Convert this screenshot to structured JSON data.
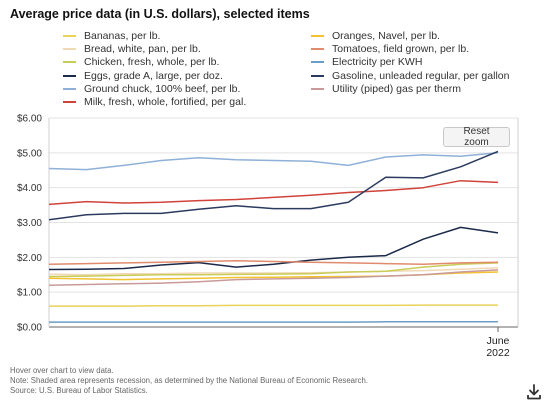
{
  "title": "Average price data (in U.S. dollars), selected items",
  "reset_button": "Reset zoom",
  "notes": [
    "Hover over chart to view data.",
    "Note: Shaded area represents recession, as determined by the National Bureau of Economic Research.",
    "Source: U.S. Bureau of Labor Statistics."
  ],
  "download_icon": "download-icon",
  "chart_data": {
    "type": "line",
    "x_tick_labels": [
      "June",
      "2022"
    ],
    "ylim": [
      0,
      6
    ],
    "yticks": [
      "$0.00",
      "$1.00",
      "$2.00",
      "$3.00",
      "$4.00",
      "$5.00",
      "$6.00"
    ],
    "grid": true,
    "legend_placement": "top",
    "series": [
      {
        "name": "Bananas, per lb.",
        "color": "#e8d25a",
        "values": [
          0.6,
          0.6,
          0.6,
          0.61,
          0.61,
          0.62,
          0.62,
          0.62,
          0.62,
          0.62,
          0.63,
          0.63,
          0.63
        ]
      },
      {
        "name": "Bread, white, pan, per lb.",
        "color": "#f0d9b5",
        "values": [
          1.52,
          1.5,
          1.53,
          1.53,
          1.55,
          1.55,
          1.55,
          1.56,
          1.58,
          1.6,
          1.62,
          1.66,
          1.7
        ]
      },
      {
        "name": "Chicken, fresh, whole, per lb.",
        "color": "#c9cd57",
        "values": [
          1.45,
          1.46,
          1.48,
          1.5,
          1.5,
          1.51,
          1.52,
          1.53,
          1.58,
          1.6,
          1.72,
          1.8,
          1.84
        ]
      },
      {
        "name": "Eggs, grade A, large, per doz.",
        "color": "#1c2a4a",
        "values": [
          1.65,
          1.66,
          1.68,
          1.78,
          1.85,
          1.72,
          1.8,
          1.92,
          2.0,
          2.05,
          2.52,
          2.86,
          2.7
        ]
      },
      {
        "name": "Ground chuck, 100% beef, per lb.",
        "color": "#8fb0d8",
        "values": [
          4.55,
          4.52,
          4.64,
          4.78,
          4.86,
          4.8,
          4.78,
          4.76,
          4.64,
          4.88,
          4.94,
          4.9,
          5.0
        ]
      },
      {
        "name": "Milk, fresh, whole, fortified, per gal.",
        "color": "#d0433b",
        "values": [
          3.52,
          3.6,
          3.56,
          3.58,
          3.63,
          3.66,
          3.72,
          3.78,
          3.86,
          3.92,
          4.0,
          4.2,
          4.15
        ]
      },
      {
        "name": "Oranges, Navel, per lb.",
        "color": "#f2c230",
        "values": [
          1.4,
          1.38,
          1.36,
          1.38,
          1.4,
          1.42,
          1.43,
          1.44,
          1.45,
          1.46,
          1.5,
          1.55,
          1.58
        ]
      },
      {
        "name": "Tomatoes, field grown, per lb.",
        "color": "#e08b6d",
        "values": [
          1.8,
          1.82,
          1.84,
          1.86,
          1.88,
          1.9,
          1.88,
          1.86,
          1.84,
          1.82,
          1.8,
          1.84,
          1.86
        ]
      },
      {
        "name": "Electricity per KWH",
        "color": "#6a9ec8",
        "values": [
          0.14,
          0.14,
          0.14,
          0.14,
          0.14,
          0.14,
          0.14,
          0.14,
          0.14,
          0.15,
          0.15,
          0.15,
          0.15
        ]
      },
      {
        "name": "Gasoline, unleaded regular, per gallon",
        "color": "#2b3a5e",
        "values": [
          3.08,
          3.22,
          3.26,
          3.26,
          3.38,
          3.48,
          3.4,
          3.4,
          3.58,
          4.3,
          4.28,
          4.6,
          5.04
        ]
      },
      {
        "name": "Utility (piped) gas per therm",
        "color": "#c99a9a",
        "values": [
          1.2,
          1.22,
          1.24,
          1.26,
          1.3,
          1.36,
          1.38,
          1.4,
          1.42,
          1.46,
          1.5,
          1.58,
          1.64
        ]
      }
    ]
  }
}
